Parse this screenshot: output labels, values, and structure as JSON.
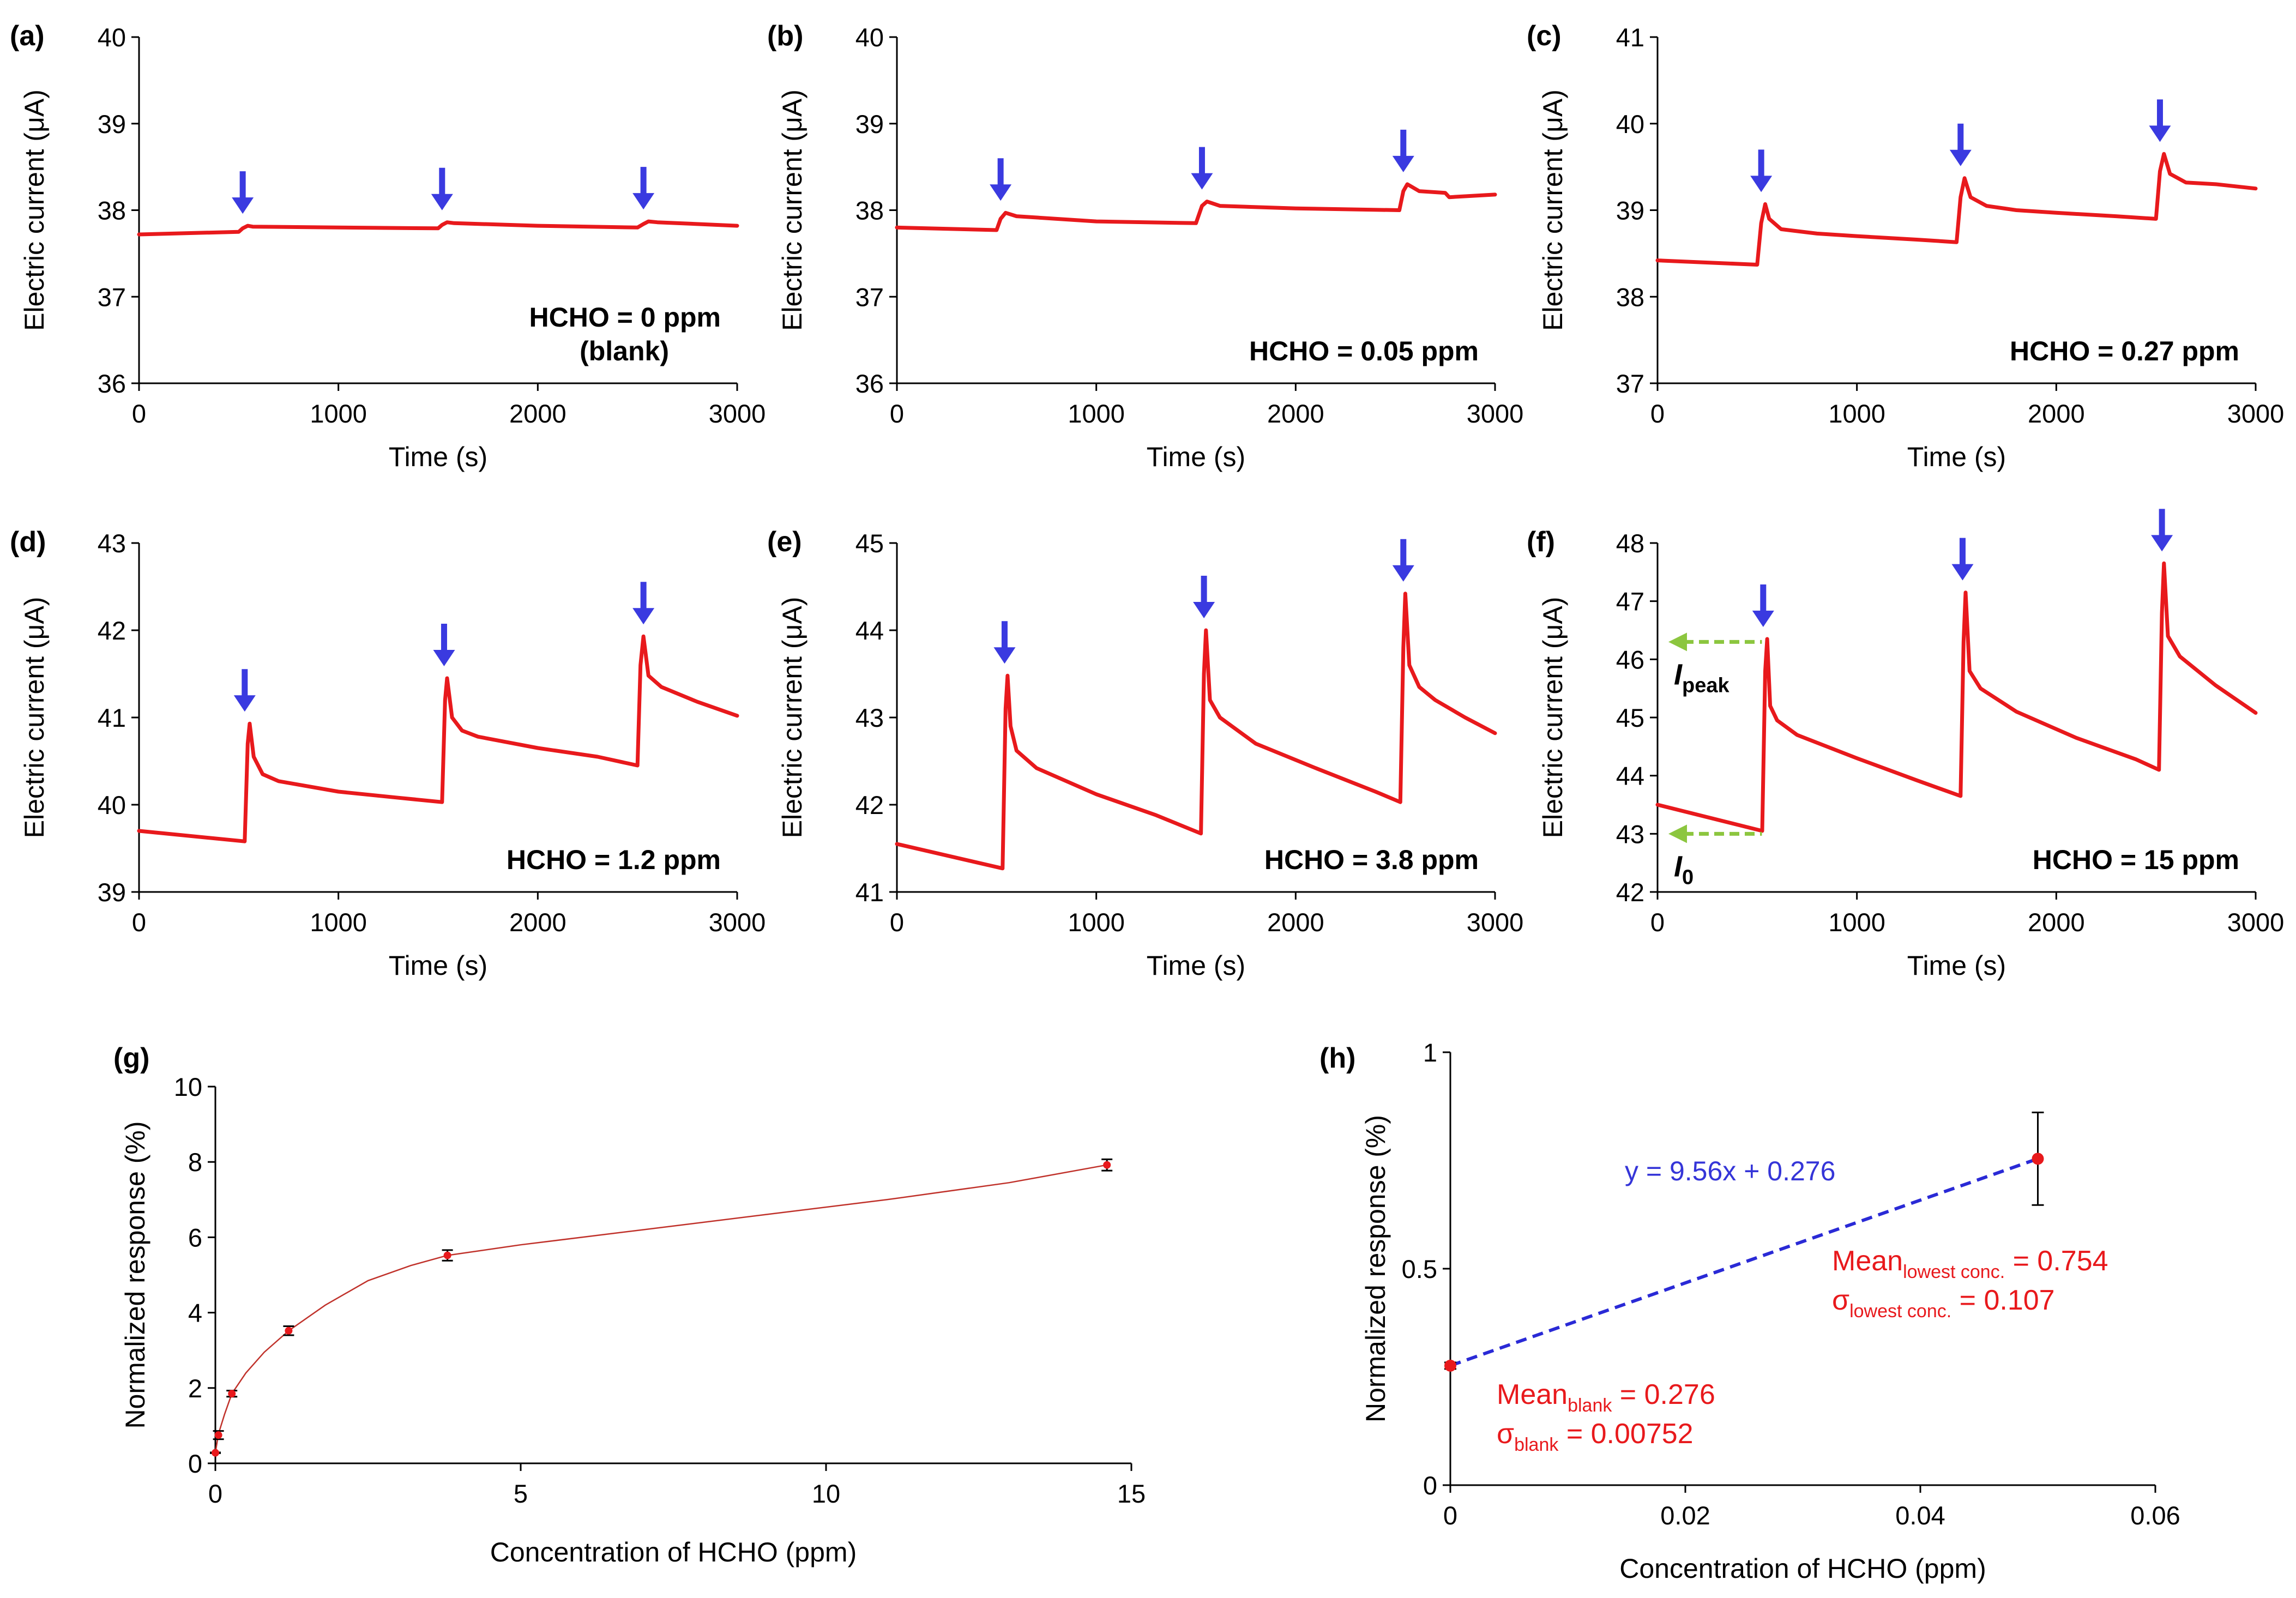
{
  "colors": {
    "trace": "#e8191c",
    "arrow": "#3a3ae0",
    "fit_line_h": "#2a2ad6",
    "green_arrow": "#8cc63f",
    "fit_curve_g": "#c0322b",
    "annotation_red": "#e8191c",
    "equation_blue": "#3535d8"
  },
  "chart_data": [
    {
      "panel": "(a)",
      "type": "line",
      "xlabel": "Time (s)",
      "ylabel": "Electric current (μA)",
      "xlim": [
        0,
        3000
      ],
      "ylim": [
        36,
        40
      ],
      "xticks": [
        0,
        1000,
        2000,
        3000
      ],
      "yticks": [
        36,
        37,
        38,
        39,
        40
      ],
      "injection_times": [
        520,
        1520,
        2530
      ],
      "annotation": [
        "HCHO = 0 ppm",
        "(blank)"
      ],
      "series": [
        {
          "name": "current",
          "x": [
            0,
            500,
            520,
            545,
            570,
            1000,
            1500,
            1520,
            1545,
            1580,
            2000,
            2500,
            2530,
            2555,
            2600,
            3000
          ],
          "y": [
            37.72,
            37.75,
            37.79,
            37.82,
            37.81,
            37.8,
            37.79,
            37.83,
            37.86,
            37.85,
            37.82,
            37.8,
            37.84,
            37.87,
            37.86,
            37.82
          ]
        }
      ]
    },
    {
      "panel": "(b)",
      "type": "line",
      "xlabel": "Time (s)",
      "ylabel": "Electric current (μA)",
      "xlim": [
        0,
        3000
      ],
      "ylim": [
        36,
        40
      ],
      "xticks": [
        0,
        1000,
        2000,
        3000
      ],
      "yticks": [
        36,
        37,
        38,
        39,
        40
      ],
      "injection_times": [
        520,
        1530,
        2540
      ],
      "annotation": [
        "HCHO = 0.05 ppm"
      ],
      "series": [
        {
          "name": "current",
          "x": [
            0,
            500,
            520,
            545,
            600,
            1000,
            1500,
            1530,
            1555,
            1620,
            2000,
            2520,
            2540,
            2560,
            2620,
            2750,
            2770,
            3000
          ],
          "y": [
            37.8,
            37.77,
            37.9,
            37.97,
            37.93,
            37.87,
            37.85,
            38.05,
            38.1,
            38.05,
            38.02,
            38.0,
            38.22,
            38.3,
            38.22,
            38.2,
            38.15,
            38.18
          ]
        }
      ]
    },
    {
      "panel": "(c)",
      "type": "line",
      "xlabel": "Time (s)",
      "ylabel": "Electric current (μA)",
      "xlim": [
        0,
        3000
      ],
      "ylim": [
        37,
        41
      ],
      "xticks": [
        0,
        1000,
        2000,
        3000
      ],
      "yticks": [
        37,
        38,
        39,
        40,
        41
      ],
      "injection_times": [
        520,
        1520,
        2520
      ],
      "annotation": [
        "HCHO = 0.27 ppm"
      ],
      "series": [
        {
          "name": "current",
          "x": [
            0,
            500,
            520,
            540,
            560,
            620,
            800,
            1000,
            1300,
            1500,
            1520,
            1540,
            1570,
            1650,
            1800,
            2000,
            2300,
            2500,
            2520,
            2540,
            2570,
            2650,
            2800,
            3000
          ],
          "y": [
            38.42,
            38.37,
            38.85,
            39.07,
            38.9,
            38.78,
            38.73,
            38.7,
            38.66,
            38.63,
            39.15,
            39.37,
            39.15,
            39.05,
            39.0,
            38.97,
            38.93,
            38.9,
            39.45,
            39.65,
            39.42,
            39.32,
            39.3,
            39.25
          ]
        }
      ]
    },
    {
      "panel": "(d)",
      "type": "line",
      "xlabel": "Time (s)",
      "ylabel": "Electric current (μA)",
      "xlim": [
        0,
        3000
      ],
      "ylim": [
        39,
        43
      ],
      "xticks": [
        0,
        1000,
        2000,
        3000
      ],
      "yticks": [
        39,
        40,
        41,
        42,
        43
      ],
      "injection_times": [
        530,
        1530,
        2530
      ],
      "annotation": [
        "HCHO = 1.2 ppm"
      ],
      "series": [
        {
          "name": "current",
          "x": [
            0,
            530,
            545,
            555,
            575,
            620,
            700,
            1000,
            1300,
            1520,
            1535,
            1545,
            1570,
            1620,
            1700,
            2000,
            2300,
            2500,
            2515,
            2530,
            2555,
            2620,
            2800,
            3000
          ],
          "y": [
            39.7,
            39.58,
            40.7,
            40.93,
            40.55,
            40.35,
            40.27,
            40.15,
            40.08,
            40.03,
            41.2,
            41.45,
            41.0,
            40.85,
            40.78,
            40.65,
            40.55,
            40.45,
            41.6,
            41.93,
            41.48,
            41.35,
            41.18,
            41.02
          ]
        }
      ]
    },
    {
      "panel": "(e)",
      "type": "line",
      "xlabel": "Time (s)",
      "ylabel": "Electric current (μA)",
      "xlim": [
        0,
        3000
      ],
      "ylim": [
        41,
        45
      ],
      "xticks": [
        0,
        1000,
        2000,
        3000
      ],
      "yticks": [
        41,
        42,
        43,
        44,
        45
      ],
      "injection_times": [
        540,
        1540,
        2540
      ],
      "annotation": [
        "HCHO = 3.8 ppm"
      ],
      "series": [
        {
          "name": "current",
          "x": [
            0,
            530,
            545,
            555,
            570,
            600,
            700,
            1000,
            1300,
            1525,
            1540,
            1550,
            1570,
            1620,
            1800,
            2100,
            2400,
            2525,
            2540,
            2550,
            2570,
            2620,
            2700,
            2850,
            3000
          ],
          "y": [
            41.55,
            41.27,
            43.1,
            43.48,
            42.9,
            42.62,
            42.42,
            42.12,
            41.88,
            41.67,
            43.5,
            44.0,
            43.2,
            43.0,
            42.7,
            42.42,
            42.15,
            42.03,
            43.8,
            44.42,
            43.6,
            43.35,
            43.2,
            43.0,
            42.82
          ]
        }
      ]
    },
    {
      "panel": "(f)",
      "type": "line",
      "xlabel": "Time (s)",
      "ylabel": "Electric current (μA)",
      "xlim": [
        0,
        3000
      ],
      "ylim": [
        42,
        48
      ],
      "xticks": [
        0,
        1000,
        2000,
        3000
      ],
      "yticks": [
        42,
        43,
        44,
        45,
        46,
        47,
        48
      ],
      "injection_times": [
        530,
        1530,
        2530
      ],
      "annotation": [
        "HCHO = 15 ppm"
      ],
      "markers": {
        "peak_label": "I",
        "peak_sub": "peak",
        "peak_value": 46.3,
        "base_label": "I",
        "base_sub": "0",
        "base_value": 43.0
      },
      "series": [
        {
          "name": "current",
          "x": [
            0,
            525,
            540,
            550,
            565,
            600,
            700,
            1000,
            1300,
            1520,
            1535,
            1545,
            1565,
            1620,
            1800,
            2100,
            2400,
            2515,
            2530,
            2540,
            2560,
            2620,
            2800,
            3000
          ],
          "y": [
            43.5,
            43.05,
            45.8,
            46.35,
            45.2,
            44.95,
            44.7,
            44.3,
            43.92,
            43.65,
            46.3,
            47.15,
            45.8,
            45.5,
            45.1,
            44.65,
            44.28,
            44.1,
            46.8,
            47.65,
            46.4,
            46.05,
            45.55,
            45.08
          ]
        }
      ]
    },
    {
      "panel": "(g)",
      "type": "scatter",
      "xlabel": "Concentration of HCHO (ppm)",
      "ylabel": "Normalized response (%)",
      "xlim": [
        0,
        15
      ],
      "ylim": [
        0,
        10
      ],
      "xticks": [
        0,
        5,
        10,
        15
      ],
      "yticks": [
        0,
        2,
        4,
        6,
        8,
        10
      ],
      "points": {
        "x": [
          0,
          0.05,
          0.27,
          1.2,
          3.8,
          14.6
        ],
        "y": [
          0.28,
          0.75,
          1.85,
          3.52,
          5.52,
          7.92
        ],
        "err": [
          0.01,
          0.11,
          0.08,
          0.12,
          0.14,
          0.15
        ]
      },
      "fit": {
        "x": [
          0,
          0.05,
          0.15,
          0.27,
          0.5,
          0.8,
          1.2,
          1.8,
          2.5,
          3.2,
          3.8,
          5,
          7,
          9,
          11,
          13,
          14.6
        ],
        "y": [
          0.28,
          0.78,
          1.3,
          1.85,
          2.4,
          2.95,
          3.52,
          4.2,
          4.85,
          5.25,
          5.52,
          5.8,
          6.2,
          6.6,
          7.0,
          7.45,
          7.92
        ]
      }
    },
    {
      "panel": "(h)",
      "type": "scatter",
      "xlabel": "Concentration of HCHO (ppm)",
      "ylabel": "Normalized response (%)",
      "xlim": [
        0,
        0.06
      ],
      "ylim": [
        0,
        1
      ],
      "xticks": [
        "0",
        "0.02",
        "0.04",
        "0.06"
      ],
      "xtick_values": [
        0,
        0.02,
        0.04,
        0.06
      ],
      "yticks": [
        "0",
        "0.5",
        "1"
      ],
      "ytick_values": [
        0,
        0.5,
        1
      ],
      "points": {
        "x": [
          0,
          0.05
        ],
        "y": [
          0.276,
          0.754
        ],
        "err": [
          0.00752,
          0.107
        ]
      },
      "equation": "y = 9.56x + 0.276",
      "slope": 9.56,
      "intercept": 0.276,
      "stats_lowest": {
        "mean_label": "Mean",
        "mean_sub": "lowest conc.",
        "mean_value": " = 0.754",
        "sigma_label": "σ",
        "sigma_sub": "lowest conc.",
        "sigma_value": " = 0.107"
      },
      "stats_blank": {
        "mean_label": "Mean",
        "mean_sub": "blank",
        "mean_value": " = 0.276",
        "sigma_label": "σ",
        "sigma_sub": "blank",
        "sigma_value": " = 0.00752"
      }
    }
  ]
}
